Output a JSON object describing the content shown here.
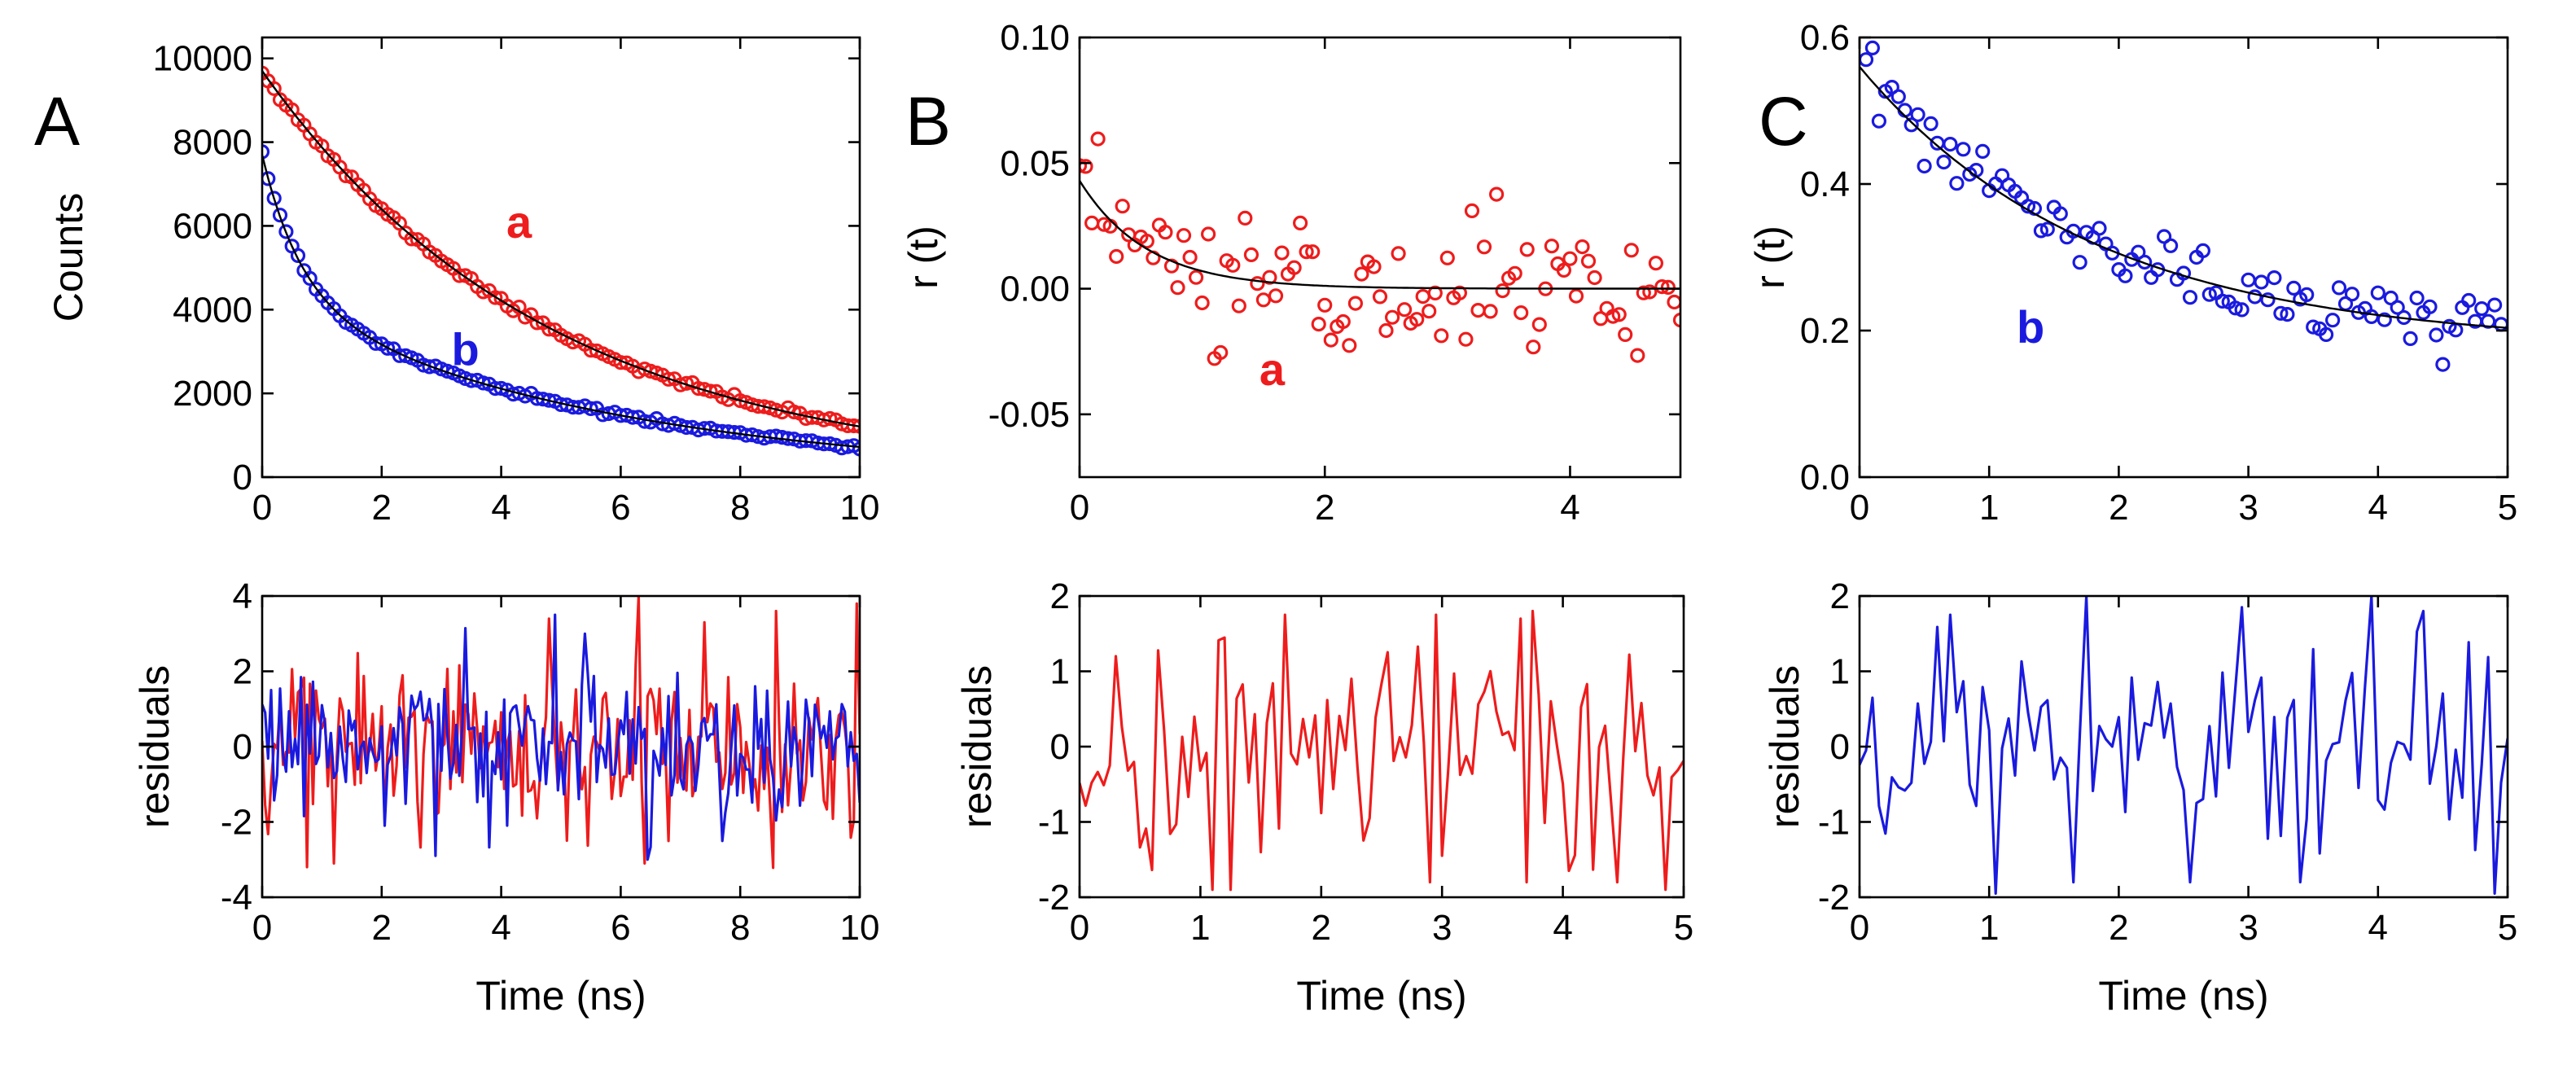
{
  "colors": {
    "red": "#ee1c1c",
    "blue": "#1a1adf",
    "fit": "#000000",
    "axis": "#000000"
  },
  "panel_letters": [
    "A",
    "B",
    "C"
  ],
  "chart_data": [
    {
      "id": "A-top",
      "type": "scatter",
      "panel_letter": "A",
      "xlim": [
        0,
        10
      ],
      "ylim": [
        0,
        10500
      ],
      "xticks": [
        0,
        2,
        4,
        6,
        8,
        10
      ],
      "xtick_labels": [
        "0",
        "2",
        "4",
        "6",
        "8",
        "10"
      ],
      "yticks": [
        0,
        2000,
        4000,
        6000,
        8000,
        10000
      ],
      "ytick_labels": [
        "0",
        "2000",
        "4000",
        "6000",
        "8000",
        "10000"
      ],
      "xlabel": "",
      "ylabel": "Counts",
      "annotations": [
        {
          "text": "a",
          "x": 4.3,
          "y": 6100,
          "color": "red"
        },
        {
          "text": "b",
          "x": 3.4,
          "y": 3050,
          "color": "blue"
        }
      ],
      "series": [
        {
          "name": "a",
          "color": "red",
          "marker": "circle",
          "x_start": 0,
          "x_step": 0.1,
          "count": 101,
          "model": {
            "kind": "exp",
            "amplitudes": [
              9700
            ],
            "taus": [
              4.8
            ],
            "offset": 0
          },
          "noise": 45,
          "seed": 11
        },
        {
          "name": "b",
          "color": "blue",
          "marker": "circle",
          "x_start": 0,
          "x_step": 0.1,
          "count": 101,
          "model": {
            "kind": "exp",
            "amplitudes": [
              3400,
              4300
            ],
            "taus": [
              0.65,
              5.6
            ],
            "offset": 0
          },
          "noise": 35,
          "seed": 23
        }
      ],
      "fits": [
        {
          "name": "fit-a",
          "color": "fit",
          "model": {
            "kind": "exp",
            "amplitudes": [
              9700
            ],
            "taus": [
              4.8
            ],
            "offset": 0
          }
        },
        {
          "name": "fit-b",
          "color": "fit",
          "model": {
            "kind": "exp",
            "amplitudes": [
              3400,
              4300
            ],
            "taus": [
              0.65,
              5.6
            ],
            "offset": 0
          }
        }
      ]
    },
    {
      "id": "A-bottom",
      "type": "line",
      "panel_letter": "",
      "xlim": [
        0,
        10
      ],
      "ylim": [
        -4,
        4
      ],
      "xticks": [
        0,
        2,
        4,
        6,
        8,
        10
      ],
      "xtick_labels": [
        "0",
        "2",
        "4",
        "6",
        "8",
        "10"
      ],
      "yticks": [
        -4,
        -2,
        0,
        2,
        4
      ],
      "ytick_labels": [
        "-4",
        "-2",
        "0",
        "2",
        "4"
      ],
      "xlabel": "Time (ns)",
      "ylabel": "residuals",
      "annotations": [],
      "series": [
        {
          "name": "residuals-a",
          "color": "red",
          "x_start": 0,
          "x_step": 0.05,
          "count": 201,
          "amplitude": 1.25,
          "seed": 5,
          "peaks": [
            {
              "x": 6.3,
              "y": 4.0
            },
            {
              "x": 7.4,
              "y": 3.3
            },
            {
              "x": 9.95,
              "y": 3.8
            },
            {
              "x": 4.8,
              "y": 3.4
            },
            {
              "x": 0.75,
              "y": -3.2
            },
            {
              "x": 1.2,
              "y": -3.1
            },
            {
              "x": 6.4,
              "y": -3.1
            }
          ]
        },
        {
          "name": "residuals-b",
          "color": "blue",
          "x_start": 0,
          "x_step": 0.05,
          "count": 201,
          "amplitude": 1.05,
          "seed": 9,
          "peaks": [
            {
              "x": 4.9,
              "y": 3.5
            },
            {
              "x": 6.45,
              "y": -3.0
            },
            {
              "x": 5.4,
              "y": 3.0
            },
            {
              "x": 2.9,
              "y": -2.9
            }
          ]
        }
      ]
    },
    {
      "id": "B-top",
      "type": "scatter",
      "panel_letter": "B",
      "xlim": [
        0,
        4.9
      ],
      "ylim": [
        -0.075,
        0.1
      ],
      "xticks": [
        0,
        2,
        4
      ],
      "xtick_labels": [
        "0",
        "2",
        "4"
      ],
      "yticks": [
        -0.05,
        0.0,
        0.05,
        0.1
      ],
      "ytick_labels": [
        "-0.05",
        "0.00",
        "0.05",
        "0.10"
      ],
      "xlabel": "",
      "ylabel": "r (t)",
      "annotations": [
        {
          "text": "a",
          "x": 1.57,
          "y": -0.032,
          "color": "red"
        }
      ],
      "series": [
        {
          "name": "a",
          "color": "red",
          "marker": "circle",
          "x_start": 0,
          "x_step": 0.05,
          "count": 99,
          "model": {
            "kind": "exp",
            "amplitudes": [
              0.043
            ],
            "taus": [
              0.55
            ],
            "offset": 0
          },
          "noise": 0.013,
          "seed": 31
        }
      ],
      "fits": [
        {
          "name": "fit-a",
          "color": "fit",
          "model": {
            "kind": "exp",
            "amplitudes": [
              0.043
            ],
            "taus": [
              0.55
            ],
            "offset": 0
          }
        }
      ]
    },
    {
      "id": "B-bottom",
      "type": "line",
      "panel_letter": "",
      "xlim": [
        0,
        5
      ],
      "ylim": [
        -2,
        2
      ],
      "xticks": [
        0,
        1,
        2,
        3,
        4,
        5
      ],
      "xtick_labels": [
        "0",
        "1",
        "2",
        "3",
        "4",
        "5"
      ],
      "yticks": [
        -2,
        -1,
        0,
        1,
        2
      ],
      "ytick_labels": [
        "-2",
        "-1",
        "0",
        "1",
        "2"
      ],
      "xlabel": "Time (ns)",
      "ylabel": "residuals",
      "annotations": [],
      "series": [
        {
          "name": "residuals-a",
          "color": "red",
          "x_start": 0,
          "x_step": 0.05,
          "count": 101,
          "amplitude": 0.85,
          "seed": 41,
          "peaks": [
            {
              "x": 1.7,
              "y": 1.75
            },
            {
              "x": 2.95,
              "y": 1.75
            },
            {
              "x": 3.65,
              "y": 1.7
            },
            {
              "x": 1.1,
              "y": -1.9
            },
            {
              "x": 1.25,
              "y": -1.9
            },
            {
              "x": 4.85,
              "y": -1.9
            }
          ]
        }
      ]
    },
    {
      "id": "C-top",
      "type": "scatter",
      "panel_letter": "C",
      "xlim": [
        0,
        5
      ],
      "ylim": [
        0,
        0.6
      ],
      "xticks": [
        0,
        1,
        2,
        3,
        4,
        5
      ],
      "xtick_labels": [
        "0",
        "1",
        "2",
        "3",
        "4",
        "5"
      ],
      "yticks": [
        0,
        0.2,
        0.4,
        0.6
      ],
      "ytick_labels": [
        "0.0",
        "0.2",
        "0.4",
        "0.6"
      ],
      "xlabel": "",
      "ylabel": "r (t)",
      "annotations": [
        {
          "text": "b",
          "x": 1.32,
          "y": 0.205,
          "color": "blue"
        }
      ],
      "series": [
        {
          "name": "b",
          "color": "blue",
          "marker": "circle",
          "x_start": 0.05,
          "x_step": 0.05,
          "count": 99,
          "model": {
            "kind": "exp",
            "amplitudes": [
              0.38
            ],
            "taus": [
              1.8
            ],
            "offset": 0.18
          },
          "noise": 0.02,
          "seed": 53
        }
      ],
      "fits": [
        {
          "name": "fit-b",
          "color": "fit",
          "model": {
            "kind": "exp",
            "amplitudes": [
              0.38
            ],
            "taus": [
              1.8
            ],
            "offset": 0.18
          }
        }
      ]
    },
    {
      "id": "C-bottom",
      "type": "line",
      "panel_letter": "",
      "xlim": [
        0,
        5
      ],
      "ylim": [
        -2,
        2
      ],
      "xticks": [
        0,
        1,
        2,
        3,
        4,
        5
      ],
      "xtick_labels": [
        "0",
        "1",
        "2",
        "3",
        "4",
        "5"
      ],
      "yticks": [
        -2,
        -1,
        0,
        1,
        2
      ],
      "ytick_labels": [
        "-2",
        "-1",
        "0",
        "1",
        "2"
      ],
      "xlabel": "Time (ns)",
      "ylabel": "residuals",
      "annotations": [],
      "series": [
        {
          "name": "residuals-b",
          "color": "blue",
          "x_start": 0,
          "x_step": 0.05,
          "count": 101,
          "amplitude": 0.85,
          "seed": 61,
          "peaks": [
            {
              "x": 1.75,
              "y": 2.0
            },
            {
              "x": 3.95,
              "y": 2.0
            },
            {
              "x": 0.7,
              "y": 1.75
            },
            {
              "x": 2.95,
              "y": 1.85
            },
            {
              "x": 1.05,
              "y": -1.95
            },
            {
              "x": 4.9,
              "y": -1.95
            }
          ]
        }
      ]
    }
  ]
}
